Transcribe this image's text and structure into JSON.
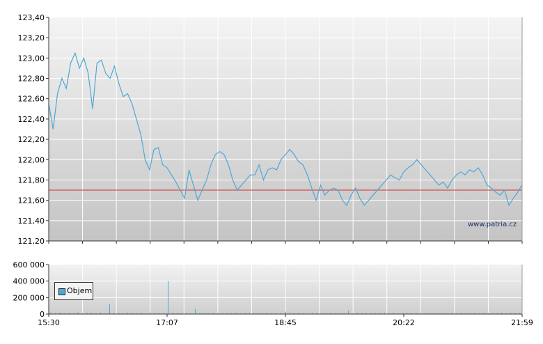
{
  "chart_data": [
    {
      "type": "line",
      "title": "",
      "xlabel": "",
      "ylabel": "",
      "ylim": [
        121.2,
        123.4
      ],
      "y_ticks": [
        "123,40",
        "123,20",
        "123,00",
        "122,80",
        "122,60",
        "122,40",
        "122,20",
        "122,00",
        "121,80",
        "121,60",
        "121,40",
        "121,20"
      ],
      "reference_line": 121.7,
      "grid": true,
      "series": [
        {
          "color": "#4fa7d6",
          "reference_color": "#cc3333",
          "points": [
            [
              0,
              122.55
            ],
            [
              1,
              122.3
            ],
            [
              2,
              122.65
            ],
            [
              3,
              122.8
            ],
            [
              4,
              122.7
            ],
            [
              5,
              122.95
            ],
            [
              6,
              123.05
            ],
            [
              7,
              122.9
            ],
            [
              8,
              123.0
            ],
            [
              9,
              122.85
            ],
            [
              10,
              122.5
            ],
            [
              11,
              122.95
            ],
            [
              12,
              122.98
            ],
            [
              13,
              122.85
            ],
            [
              14,
              122.8
            ],
            [
              15,
              122.92
            ],
            [
              16,
              122.75
            ],
            [
              17,
              122.62
            ],
            [
              18,
              122.65
            ],
            [
              19,
              122.55
            ],
            [
              20,
              122.4
            ],
            [
              21,
              122.25
            ],
            [
              22,
              122.0
            ],
            [
              23,
              121.9
            ],
            [
              24,
              122.1
            ],
            [
              25,
              122.12
            ],
            [
              26,
              121.95
            ],
            [
              27,
              121.92
            ],
            [
              28,
              121.85
            ],
            [
              29,
              121.78
            ],
            [
              30,
              121.7
            ],
            [
              31,
              121.62
            ],
            [
              32,
              121.9
            ],
            [
              33,
              121.75
            ],
            [
              34,
              121.6
            ],
            [
              35,
              121.7
            ],
            [
              36,
              121.8
            ],
            [
              37,
              121.95
            ],
            [
              38,
              122.05
            ],
            [
              39,
              122.08
            ],
            [
              40,
              122.05
            ],
            [
              41,
              121.95
            ],
            [
              42,
              121.8
            ],
            [
              43,
              121.7
            ],
            [
              44,
              121.75
            ],
            [
              45,
              121.8
            ],
            [
              46,
              121.85
            ],
            [
              47,
              121.85
            ],
            [
              48,
              121.95
            ],
            [
              49,
              121.8
            ],
            [
              50,
              121.9
            ],
            [
              51,
              121.92
            ],
            [
              52,
              121.9
            ],
            [
              53,
              122.0
            ],
            [
              54,
              122.05
            ],
            [
              55,
              122.1
            ],
            [
              56,
              122.05
            ],
            [
              57,
              121.98
            ],
            [
              58,
              121.95
            ],
            [
              59,
              121.85
            ],
            [
              60,
              121.72
            ],
            [
              61,
              121.6
            ],
            [
              62,
              121.75
            ],
            [
              63,
              121.65
            ],
            [
              64,
              121.7
            ],
            [
              65,
              121.72
            ],
            [
              66,
              121.7
            ],
            [
              67,
              121.6
            ],
            [
              68,
              121.55
            ],
            [
              69,
              121.65
            ],
            [
              70,
              121.72
            ],
            [
              71,
              121.62
            ],
            [
              72,
              121.55
            ],
            [
              73,
              121.6
            ],
            [
              74,
              121.65
            ],
            [
              75,
              121.7
            ],
            [
              76,
              121.75
            ],
            [
              77,
              121.8
            ],
            [
              78,
              121.85
            ],
            [
              79,
              121.82
            ],
            [
              80,
              121.8
            ],
            [
              81,
              121.88
            ],
            [
              82,
              121.92
            ],
            [
              83,
              121.95
            ],
            [
              84,
              122.0
            ],
            [
              85,
              121.95
            ],
            [
              86,
              121.9
            ],
            [
              87,
              121.85
            ],
            [
              88,
              121.8
            ],
            [
              89,
              121.75
            ],
            [
              90,
              121.78
            ],
            [
              91,
              121.72
            ],
            [
              92,
              121.8
            ],
            [
              93,
              121.85
            ],
            [
              94,
              121.88
            ],
            [
              95,
              121.85
            ],
            [
              96,
              121.9
            ],
            [
              97,
              121.88
            ],
            [
              98,
              121.92
            ],
            [
              99,
              121.85
            ],
            [
              100,
              121.75
            ],
            [
              101,
              121.72
            ],
            [
              102,
              121.68
            ],
            [
              103,
              121.65
            ],
            [
              104,
              121.7
            ],
            [
              105,
              121.55
            ],
            [
              106,
              121.62
            ],
            [
              107,
              121.68
            ],
            [
              108,
              121.75
            ]
          ]
        }
      ]
    },
    {
      "type": "bar",
      "title": "",
      "xlabel": "",
      "ylabel": "",
      "ylim": [
        0,
        600000
      ],
      "y_ticks": [
        "600 000",
        "400 000",
        "200 000",
        "0"
      ],
      "x_ticks": [
        "15:30",
        "17:07",
        "18:45",
        "20:22",
        "21:59"
      ],
      "grid": true,
      "legend": "top-left",
      "series": [
        {
          "name": "Objem",
          "color": "#4fa7d6",
          "values": [
            15000,
            12000,
            18000,
            9000,
            14000,
            11000,
            20000,
            8000,
            16000,
            13000,
            10000,
            17000,
            9000,
            120000,
            12000,
            14000,
            8000,
            15000,
            11000,
            9000,
            13000,
            7000,
            16000,
            10000,
            12000,
            9000,
            400000,
            15000,
            14000,
            11000,
            13000,
            9000,
            60000,
            12000,
            10000,
            8000,
            14000,
            11000,
            13000,
            9000,
            12000,
            16000,
            10000,
            8000,
            15000,
            11000,
            9000,
            13000,
            12000,
            10000,
            7000,
            14000,
            30000,
            11000,
            9000,
            12000,
            10000,
            8000,
            13000,
            11000,
            9000,
            14000,
            10000,
            12000,
            8000,
            11000,
            40000,
            9000,
            13000,
            10000,
            12000,
            8000,
            11000,
            9000,
            14000,
            10000,
            12000,
            9000,
            13000,
            11000,
            8000,
            15000,
            10000,
            12000,
            9000,
            11000,
            13000,
            8000,
            10000,
            12000,
            9000,
            14000,
            11000,
            10000,
            12000,
            8000,
            13000,
            9000,
            11000,
            10000,
            15000,
            9000,
            12000,
            10000,
            11000
          ]
        }
      ]
    }
  ],
  "watermark": "www.patria.cz"
}
